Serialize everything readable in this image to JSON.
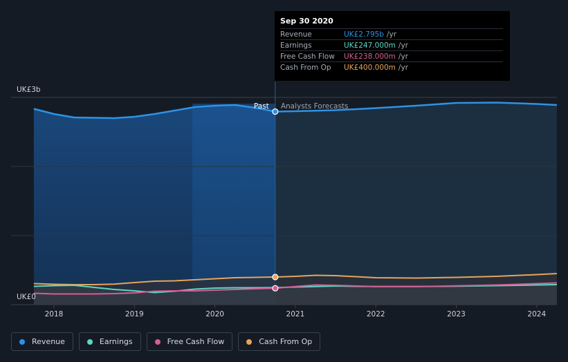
{
  "chart_data": {
    "type": "area",
    "x_unit": "year",
    "ylim": [
      0,
      3000
    ],
    "y_ticks": [
      {
        "value": 3000,
        "label": "UK£3b"
      },
      {
        "value": 0,
        "label": "UK£0"
      }
    ],
    "x_ticks": [
      "2018",
      "2019",
      "2020",
      "2021",
      "2022",
      "2023",
      "2024"
    ],
    "divider_x": 2020.75,
    "regions": {
      "past": "Past",
      "forecast": "Analysts Forecasts"
    },
    "series": [
      {
        "name": "Revenue",
        "color": "#2d93e5",
        "points": [
          [
            2017.75,
            2835
          ],
          [
            2018.0,
            2760
          ],
          [
            2018.25,
            2710
          ],
          [
            2018.5,
            2705
          ],
          [
            2018.75,
            2700
          ],
          [
            2019.0,
            2720
          ],
          [
            2019.25,
            2760
          ],
          [
            2019.5,
            2810
          ],
          [
            2019.75,
            2860
          ],
          [
            2020.0,
            2880
          ],
          [
            2020.25,
            2890
          ],
          [
            2020.5,
            2850
          ],
          [
            2020.75,
            2795
          ],
          [
            2021.0,
            2800
          ],
          [
            2021.5,
            2815
          ],
          [
            2022.0,
            2845
          ],
          [
            2022.5,
            2880
          ],
          [
            2023.0,
            2920
          ],
          [
            2023.5,
            2925
          ],
          [
            2024.0,
            2905
          ],
          [
            2024.25,
            2890
          ]
        ]
      },
      {
        "name": "Earnings",
        "color": "#5ad7c4",
        "points": [
          [
            2017.75,
            265
          ],
          [
            2018.0,
            275
          ],
          [
            2018.25,
            280
          ],
          [
            2018.5,
            250
          ],
          [
            2018.75,
            220
          ],
          [
            2019.0,
            200
          ],
          [
            2019.25,
            175
          ],
          [
            2019.5,
            195
          ],
          [
            2019.75,
            225
          ],
          [
            2020.0,
            240
          ],
          [
            2020.25,
            245
          ],
          [
            2020.5,
            245
          ],
          [
            2020.75,
            247
          ],
          [
            2021.0,
            255
          ],
          [
            2021.5,
            270
          ],
          [
            2022.0,
            262
          ],
          [
            2022.5,
            262
          ],
          [
            2023.0,
            268
          ],
          [
            2023.5,
            275
          ],
          [
            2024.0,
            285
          ],
          [
            2024.25,
            290
          ]
        ]
      },
      {
        "name": "Free Cash Flow",
        "color": "#d65d94",
        "points": [
          [
            2017.75,
            165
          ],
          [
            2018.0,
            155
          ],
          [
            2018.25,
            155
          ],
          [
            2018.5,
            155
          ],
          [
            2018.75,
            160
          ],
          [
            2019.0,
            170
          ],
          [
            2019.25,
            195
          ],
          [
            2019.5,
            200
          ],
          [
            2019.75,
            200
          ],
          [
            2020.0,
            210
          ],
          [
            2020.25,
            220
          ],
          [
            2020.5,
            230
          ],
          [
            2020.75,
            238
          ],
          [
            2021.0,
            262
          ],
          [
            2021.25,
            285
          ],
          [
            2021.5,
            280
          ],
          [
            2022.0,
            262
          ],
          [
            2022.5,
            262
          ],
          [
            2023.0,
            272
          ],
          [
            2023.5,
            285
          ],
          [
            2024.0,
            305
          ],
          [
            2024.25,
            315
          ]
        ]
      },
      {
        "name": "Cash From Op",
        "color": "#e6a55a",
        "points": [
          [
            2017.75,
            305
          ],
          [
            2018.0,
            295
          ],
          [
            2018.25,
            290
          ],
          [
            2018.5,
            290
          ],
          [
            2018.75,
            298
          ],
          [
            2019.0,
            320
          ],
          [
            2019.25,
            340
          ],
          [
            2019.5,
            345
          ],
          [
            2019.75,
            360
          ],
          [
            2020.0,
            375
          ],
          [
            2020.25,
            390
          ],
          [
            2020.5,
            395
          ],
          [
            2020.75,
            400
          ],
          [
            2021.0,
            410
          ],
          [
            2021.25,
            425
          ],
          [
            2021.5,
            420
          ],
          [
            2022.0,
            390
          ],
          [
            2022.5,
            385
          ],
          [
            2023.0,
            395
          ],
          [
            2023.5,
            410
          ],
          [
            2024.0,
            435
          ],
          [
            2024.25,
            450
          ]
        ]
      }
    ]
  },
  "tooltip": {
    "date": "Sep 30 2020",
    "rows": [
      {
        "label": "Revenue",
        "value": "UK£2.795b",
        "unit": "/yr",
        "color": "#2d93e5"
      },
      {
        "label": "Earnings",
        "value": "UK£247.000m",
        "unit": "/yr",
        "color": "#5ad7c4"
      },
      {
        "label": "Free Cash Flow",
        "value": "UK£238.000m",
        "unit": "/yr",
        "color": "#d65d94"
      },
      {
        "label": "Cash From Op",
        "value": "UK£400.000m",
        "unit": "/yr",
        "color": "#e6a55a"
      }
    ]
  },
  "legend": [
    {
      "label": "Revenue",
      "color": "#2d93e5"
    },
    {
      "label": "Earnings",
      "color": "#5ad7c4"
    },
    {
      "label": "Free Cash Flow",
      "color": "#d65d94"
    },
    {
      "label": "Cash From Op",
      "color": "#e6a55a"
    }
  ]
}
